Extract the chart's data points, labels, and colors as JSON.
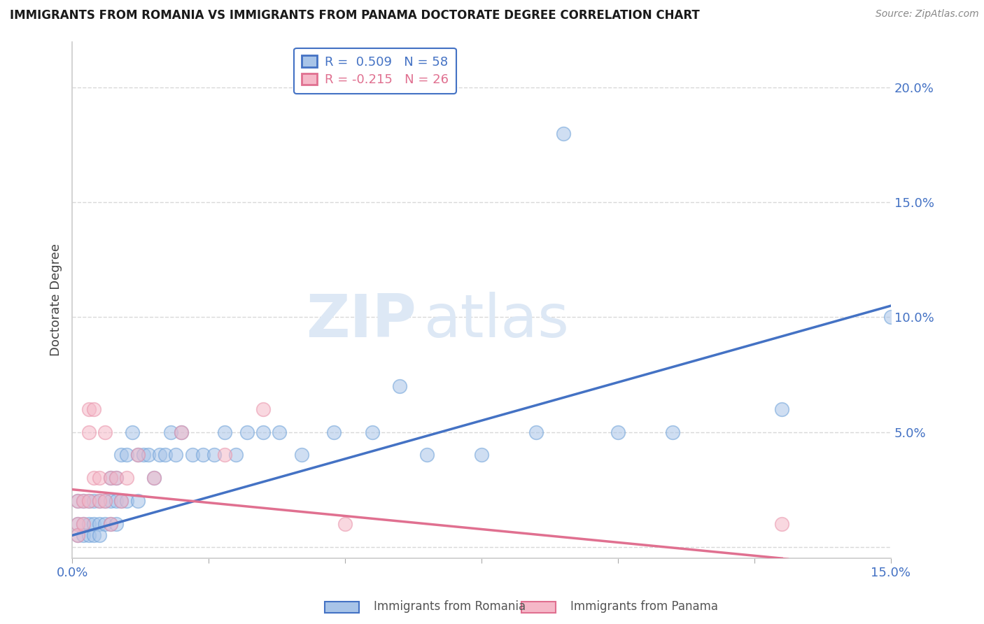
{
  "title": "IMMIGRANTS FROM ROMANIA VS IMMIGRANTS FROM PANAMA DOCTORATE DEGREE CORRELATION CHART",
  "source": "Source: ZipAtlas.com",
  "ylabel": "Doctorate Degree",
  "xlim": [
    0.0,
    0.15
  ],
  "ylim": [
    -0.005,
    0.22
  ],
  "romania_R": 0.509,
  "romania_N": 58,
  "panama_R": -0.215,
  "panama_N": 26,
  "romania_color": "#a8c4e8",
  "panama_color": "#f5b8c8",
  "romania_edge_color": "#6a9fd8",
  "panama_edge_color": "#e890a8",
  "romania_line_color": "#4472c4",
  "panama_line_color": "#e07090",
  "watermark_zip": "ZIP",
  "watermark_atlas": "atlas",
  "grid_color": "#d8d8d8",
  "background_color": "#ffffff",
  "romania_x": [
    0.001,
    0.001,
    0.001,
    0.002,
    0.002,
    0.002,
    0.003,
    0.003,
    0.003,
    0.004,
    0.004,
    0.004,
    0.005,
    0.005,
    0.005,
    0.006,
    0.006,
    0.007,
    0.007,
    0.007,
    0.008,
    0.008,
    0.008,
    0.009,
    0.009,
    0.01,
    0.01,
    0.011,
    0.012,
    0.012,
    0.013,
    0.014,
    0.015,
    0.016,
    0.017,
    0.018,
    0.019,
    0.02,
    0.022,
    0.024,
    0.026,
    0.028,
    0.03,
    0.032,
    0.035,
    0.038,
    0.042,
    0.048,
    0.055,
    0.06,
    0.065,
    0.075,
    0.085,
    0.09,
    0.1,
    0.11,
    0.13,
    0.15
  ],
  "romania_y": [
    0.01,
    0.02,
    0.005,
    0.01,
    0.02,
    0.005,
    0.01,
    0.02,
    0.005,
    0.01,
    0.02,
    0.005,
    0.02,
    0.01,
    0.005,
    0.02,
    0.01,
    0.03,
    0.02,
    0.01,
    0.03,
    0.02,
    0.01,
    0.04,
    0.02,
    0.04,
    0.02,
    0.05,
    0.04,
    0.02,
    0.04,
    0.04,
    0.03,
    0.04,
    0.04,
    0.05,
    0.04,
    0.05,
    0.04,
    0.04,
    0.04,
    0.05,
    0.04,
    0.05,
    0.05,
    0.05,
    0.04,
    0.05,
    0.05,
    0.07,
    0.04,
    0.04,
    0.05,
    0.18,
    0.05,
    0.05,
    0.06,
    0.1
  ],
  "panama_x": [
    0.001,
    0.001,
    0.001,
    0.002,
    0.002,
    0.003,
    0.003,
    0.003,
    0.004,
    0.004,
    0.005,
    0.005,
    0.006,
    0.006,
    0.007,
    0.007,
    0.008,
    0.009,
    0.01,
    0.012,
    0.015,
    0.02,
    0.028,
    0.035,
    0.05,
    0.13
  ],
  "panama_y": [
    0.01,
    0.02,
    0.005,
    0.02,
    0.01,
    0.05,
    0.06,
    0.02,
    0.06,
    0.03,
    0.03,
    0.02,
    0.05,
    0.02,
    0.03,
    0.01,
    0.03,
    0.02,
    0.03,
    0.04,
    0.03,
    0.05,
    0.04,
    0.06,
    0.01,
    0.01
  ]
}
